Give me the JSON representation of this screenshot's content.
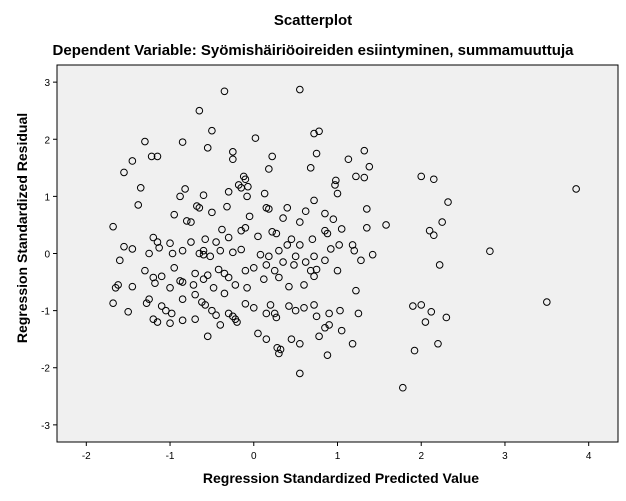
{
  "chart_data": {
    "type": "scatter",
    "title": "Scatterplot",
    "subtitle": "Dependent Variable: Syömishäiriöoireiden esiintyminen, summamuuttuja",
    "xlabel": "Regression Standardized Predicted Value",
    "ylabel": "Regression Standardized Residual",
    "xlim": [
      -2.35,
      4.35
    ],
    "ylim": [
      -3.3,
      3.3
    ],
    "x_ticks": [
      -2,
      -1,
      0,
      1,
      2,
      3,
      4
    ],
    "y_ticks": [
      -3,
      -2,
      -1,
      0,
      1,
      2,
      3
    ],
    "grid": false,
    "background": "#f0f0f0",
    "marker_color": "#000000",
    "points": [
      [
        0.55,
        2.87
      ],
      [
        -0.35,
        2.84
      ],
      [
        -0.65,
        2.5
      ],
      [
        -0.5,
        2.15
      ],
      [
        0.78,
        2.14
      ],
      [
        0.72,
        2.1
      ],
      [
        -1.3,
        1.96
      ],
      [
        -0.85,
        1.95
      ],
      [
        0.02,
        2.02
      ],
      [
        -0.55,
        1.85
      ],
      [
        -1.22,
        1.7
      ],
      [
        -1.15,
        1.7
      ],
      [
        -0.25,
        1.78
      ],
      [
        -0.25,
        1.65
      ],
      [
        0.22,
        1.7
      ],
      [
        0.75,
        1.75
      ],
      [
        1.32,
        1.8
      ],
      [
        1.38,
        1.52
      ],
      [
        1.13,
        1.65
      ],
      [
        -1.45,
        1.62
      ],
      [
        -1.55,
        1.42
      ],
      [
        -1.35,
        1.15
      ],
      [
        0.18,
        1.48
      ],
      [
        0.68,
        1.5
      ],
      [
        1.22,
        1.35
      ],
      [
        1.32,
        1.33
      ],
      [
        0.98,
        1.28
      ],
      [
        0.97,
        1.2
      ],
      [
        2.0,
        1.35
      ],
      [
        2.15,
        1.3
      ],
      [
        -0.12,
        1.35
      ],
      [
        -0.1,
        1.3
      ],
      [
        -0.82,
        1.13
      ],
      [
        -0.88,
        1.0
      ],
      [
        -0.6,
        1.02
      ],
      [
        -0.65,
        0.8
      ],
      [
        -0.68,
        0.83
      ],
      [
        -0.07,
        1.17
      ],
      [
        -0.08,
        1.0
      ],
      [
        -0.15,
        1.15
      ],
      [
        -0.3,
        1.08
      ],
      [
        -0.18,
        1.2
      ],
      [
        0.13,
        1.05
      ],
      [
        0.15,
        0.8
      ],
      [
        0.18,
        0.78
      ],
      [
        0.4,
        0.8
      ],
      [
        0.62,
        0.74
      ],
      [
        0.72,
        0.93
      ],
      [
        0.85,
        0.7
      ],
      [
        1.0,
        1.05
      ],
      [
        1.35,
        0.78
      ],
      [
        -1.38,
        0.85
      ],
      [
        -0.95,
        0.68
      ],
      [
        -0.8,
        0.57
      ],
      [
        -0.75,
        0.55
      ],
      [
        -0.5,
        0.72
      ],
      [
        -0.32,
        0.82
      ],
      [
        -0.05,
        0.65
      ],
      [
        -0.1,
        0.45
      ],
      [
        -0.15,
        0.4
      ],
      [
        0.35,
        0.62
      ],
      [
        0.55,
        0.55
      ],
      [
        0.95,
        0.6
      ],
      [
        1.58,
        0.5
      ],
      [
        2.25,
        0.55
      ],
      [
        2.32,
        0.9
      ],
      [
        3.85,
        1.13
      ],
      [
        -1.68,
        0.47
      ],
      [
        -1.2,
        0.28
      ],
      [
        -1.15,
        0.2
      ],
      [
        -1.0,
        0.18
      ],
      [
        -0.75,
        0.2
      ],
      [
        -0.58,
        0.25
      ],
      [
        -0.45,
        0.2
      ],
      [
        -0.3,
        0.28
      ],
      [
        0.05,
        0.3
      ],
      [
        0.22,
        0.38
      ],
      [
        0.27,
        0.35
      ],
      [
        0.45,
        0.25
      ],
      [
        0.55,
        0.15
      ],
      [
        0.7,
        0.25
      ],
      [
        0.85,
        0.4
      ],
      [
        0.88,
        0.35
      ],
      [
        1.05,
        0.43
      ],
      [
        1.18,
        0.15
      ],
      [
        1.35,
        0.45
      ],
      [
        2.1,
        0.4
      ],
      [
        2.15,
        0.32
      ],
      [
        2.82,
        0.04
      ],
      [
        -1.55,
        0.12
      ],
      [
        -1.45,
        0.08
      ],
      [
        -1.25,
        0.0
      ],
      [
        -1.13,
        0.1
      ],
      [
        -0.97,
        0.0
      ],
      [
        -0.85,
        0.05
      ],
      [
        -0.65,
        0.0
      ],
      [
        -0.6,
        0.05
      ],
      [
        -0.52,
        -0.05
      ],
      [
        -0.4,
        0.05
      ],
      [
        -0.25,
        0.02
      ],
      [
        -0.15,
        0.07
      ],
      [
        0.08,
        -0.02
      ],
      [
        0.18,
        -0.05
      ],
      [
        0.3,
        0.05
      ],
      [
        0.35,
        -0.15
      ],
      [
        0.5,
        -0.05
      ],
      [
        0.62,
        -0.15
      ],
      [
        0.72,
        -0.05
      ],
      [
        0.85,
        -0.12
      ],
      [
        1.02,
        0.15
      ],
      [
        1.2,
        0.05
      ],
      [
        1.42,
        -0.02
      ],
      [
        2.22,
        -0.2
      ],
      [
        -1.6,
        -0.12
      ],
      [
        -1.3,
        -0.3
      ],
      [
        -1.2,
        -0.42
      ],
      [
        -1.1,
        -0.4
      ],
      [
        -0.95,
        -0.25
      ],
      [
        -0.85,
        -0.5
      ],
      [
        -0.7,
        -0.35
      ],
      [
        -0.55,
        -0.38
      ],
      [
        -0.42,
        -0.28
      ],
      [
        -0.35,
        -0.35
      ],
      [
        -0.1,
        -0.3
      ],
      [
        0.0,
        -0.25
      ],
      [
        0.15,
        -0.2
      ],
      [
        0.25,
        -0.3
      ],
      [
        0.48,
        -0.2
      ],
      [
        0.68,
        -0.3
      ],
      [
        0.75,
        -0.28
      ],
      [
        1.0,
        -0.3
      ],
      [
        -1.65,
        -0.6
      ],
      [
        -1.62,
        -0.55
      ],
      [
        -1.45,
        -0.58
      ],
      [
        -1.25,
        -0.8
      ],
      [
        -1.18,
        -0.52
      ],
      [
        -1.0,
        -0.6
      ],
      [
        -0.88,
        -0.48
      ],
      [
        -0.72,
        -0.55
      ],
      [
        -0.6,
        -0.45
      ],
      [
        -0.48,
        -0.6
      ],
      [
        -0.3,
        -0.42
      ],
      [
        -0.22,
        -0.55
      ],
      [
        -0.08,
        -0.6
      ],
      [
        0.12,
        -0.45
      ],
      [
        0.3,
        -0.42
      ],
      [
        0.42,
        -0.58
      ],
      [
        0.6,
        -0.55
      ],
      [
        0.72,
        -0.4
      ],
      [
        1.22,
        -0.65
      ],
      [
        -1.68,
        -0.87
      ],
      [
        -1.5,
        -1.02
      ],
      [
        -1.28,
        -0.87
      ],
      [
        -1.1,
        -0.92
      ],
      [
        -1.05,
        -1.0
      ],
      [
        -0.98,
        -1.05
      ],
      [
        -0.85,
        -0.8
      ],
      [
        -0.7,
        -0.72
      ],
      [
        -0.62,
        -0.85
      ],
      [
        -0.58,
        -0.9
      ],
      [
        -0.5,
        -1.0
      ],
      [
        -0.45,
        -1.08
      ],
      [
        -0.3,
        -1.05
      ],
      [
        -0.25,
        -1.1
      ],
      [
        -0.22,
        -1.15
      ],
      [
        -0.1,
        -0.88
      ],
      [
        0.0,
        -0.95
      ],
      [
        0.15,
        -1.05
      ],
      [
        0.2,
        -0.9
      ],
      [
        0.27,
        -1.12
      ],
      [
        0.42,
        -0.92
      ],
      [
        0.5,
        -1.0
      ],
      [
        0.72,
        -0.9
      ],
      [
        0.75,
        -1.1
      ],
      [
        0.9,
        -1.05
      ],
      [
        1.03,
        -1.0
      ],
      [
        1.25,
        -1.05
      ],
      [
        1.9,
        -0.92
      ],
      [
        2.0,
        -0.9
      ],
      [
        2.05,
        -1.2
      ],
      [
        2.12,
        -1.02
      ],
      [
        2.3,
        -1.12
      ],
      [
        3.5,
        -0.85
      ],
      [
        -1.2,
        -1.15
      ],
      [
        -1.15,
        -1.2
      ],
      [
        -1.0,
        -1.22
      ],
      [
        -0.85,
        -1.17
      ],
      [
        -0.7,
        -1.15
      ],
      [
        -0.55,
        -1.45
      ],
      [
        -0.4,
        -1.25
      ],
      [
        -0.2,
        -1.2
      ],
      [
        0.05,
        -1.4
      ],
      [
        0.15,
        -1.5
      ],
      [
        0.28,
        -1.65
      ],
      [
        0.3,
        -1.75
      ],
      [
        0.32,
        -1.68
      ],
      [
        0.45,
        -1.5
      ],
      [
        0.55,
        -1.58
      ],
      [
        0.78,
        -1.45
      ],
      [
        0.85,
        -1.3
      ],
      [
        0.9,
        -1.25
      ],
      [
        0.88,
        -1.78
      ],
      [
        1.05,
        -1.35
      ],
      [
        1.18,
        -1.58
      ],
      [
        1.92,
        -1.7
      ],
      [
        2.2,
        -1.58
      ],
      [
        0.55,
        -2.1
      ],
      [
        1.78,
        -2.35
      ],
      [
        0.25,
        -1.05
      ],
      [
        -0.35,
        -0.7
      ],
      [
        0.6,
        -0.95
      ],
      [
        0.4,
        0.15
      ],
      [
        -0.6,
        -0.02
      ],
      [
        1.28,
        -0.12
      ],
      [
        0.92,
        0.08
      ],
      [
        -0.38,
        0.42
      ]
    ]
  }
}
